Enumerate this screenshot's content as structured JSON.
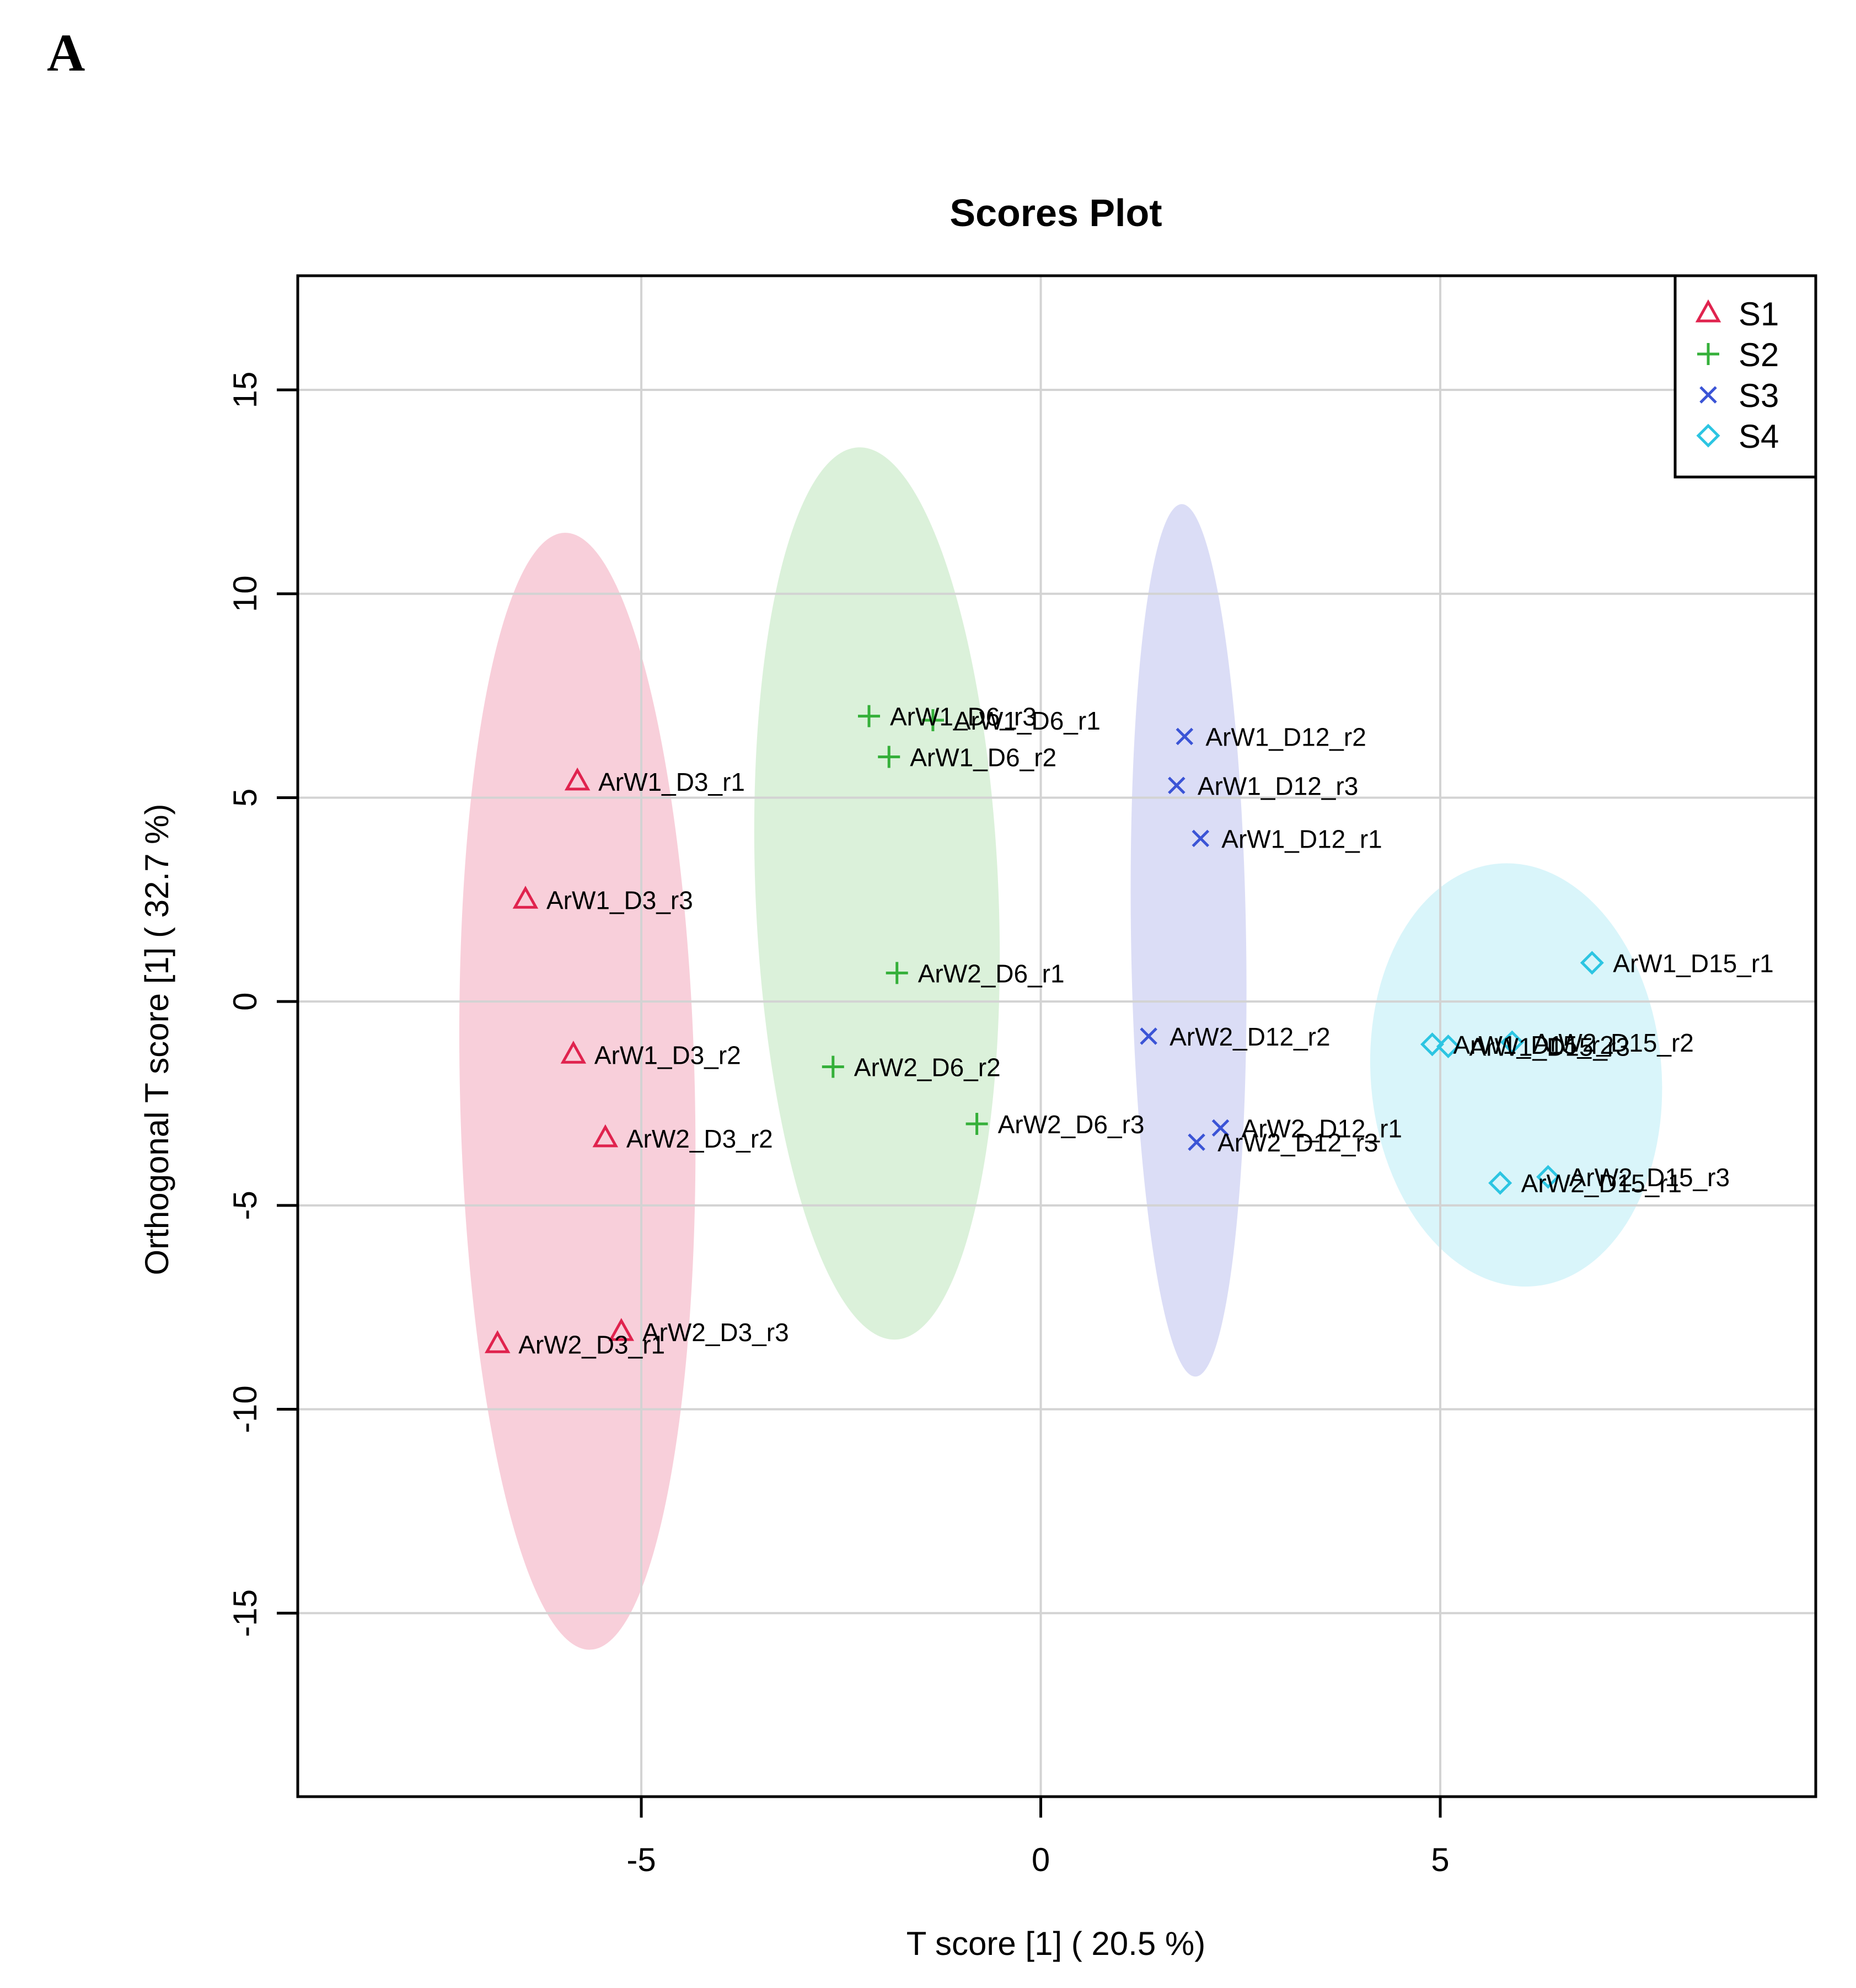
{
  "panel_label": "A",
  "chart_data": {
    "type": "scatter",
    "title": "Scores Plot",
    "xlabel": "T score [1] ( 20.5 %)",
    "ylabel": "Orthogonal T score [1] ( 32.7 %)",
    "xlim": [
      -9.3,
      9.7
    ],
    "ylim": [
      -19.5,
      17.8
    ],
    "xticks": [
      -5,
      0,
      5
    ],
    "yticks": [
      -15,
      -10,
      -5,
      0,
      5,
      10,
      15
    ],
    "grid": true,
    "legend_position": "top-right",
    "series": [
      {
        "name": "S1",
        "marker": "triangle",
        "color": "#e0234e",
        "fill": "#f5b6c6",
        "ellipse": {
          "cx": -5.8,
          "cy": -2.2,
          "rx": 1.47,
          "ry": 13.7,
          "angle_deg": -1.3
        },
        "points": [
          {
            "label": "ArW1_D3_r1",
            "x": -5.8,
            "y": 5.4
          },
          {
            "label": "ArW1_D3_r3",
            "x": -6.45,
            "y": 2.5
          },
          {
            "label": "ArW1_D3_r2",
            "x": -5.85,
            "y": -1.3
          },
          {
            "label": "ArW2_D3_r2",
            "x": -5.45,
            "y": -3.35
          },
          {
            "label": "ArW2_D3_r1",
            "x": -6.8,
            "y": -8.4
          },
          {
            "label": "ArW2_D3_r3",
            "x": -5.25,
            "y": -8.1
          }
        ]
      },
      {
        "name": "S2",
        "marker": "plus",
        "color": "#35b03a",
        "fill": "#c8e9c6",
        "ellipse": {
          "cx": -2.05,
          "cy": 2.65,
          "rx": 1.52,
          "ry": 10.95,
          "angle_deg": -2.4
        },
        "points": [
          {
            "label": "ArW1_D6_r3",
            "x": -2.15,
            "y": 7.0
          },
          {
            "label": "ArW1_D6_r1",
            "x": -1.35,
            "y": 6.9
          },
          {
            "label": "ArW1_D6_r2",
            "x": -1.9,
            "y": 6.0
          },
          {
            "label": "ArW2_D6_r1",
            "x": -1.8,
            "y": 0.7
          },
          {
            "label": "ArW2_D6_r2",
            "x": -2.6,
            "y": -1.6
          },
          {
            "label": "ArW2_D6_r3",
            "x": -0.8,
            "y": -3.0
          }
        ]
      },
      {
        "name": "S3",
        "marker": "x",
        "color": "#3b54d6",
        "fill": "#c7cbf1",
        "ellipse": {
          "cx": 1.85,
          "cy": 1.5,
          "rx": 0.72,
          "ry": 10.7,
          "angle_deg": -0.9
        },
        "points": [
          {
            "label": "ArW1_D12_r2",
            "x": 1.8,
            "y": 6.5
          },
          {
            "label": "ArW1_D12_r3",
            "x": 1.7,
            "y": 5.3
          },
          {
            "label": "ArW1_D12_r1",
            "x": 2.0,
            "y": 4.0
          },
          {
            "label": "ArW2_D12_r2",
            "x": 1.35,
            "y": -0.85
          },
          {
            "label": "ArW2_D12_r1",
            "x": 2.25,
            "y": -3.1
          },
          {
            "label": "ArW2_D12_r3",
            "x": 1.95,
            "y": -3.45
          }
        ]
      },
      {
        "name": "S4",
        "marker": "diamond",
        "color": "#2cc5e2",
        "fill": "#c5f0f7",
        "ellipse": {
          "cx": 5.95,
          "cy": -1.8,
          "rx": 1.82,
          "ry": 5.2,
          "angle_deg": -4.8
        },
        "points": [
          {
            "label": "ArW1_D15_r1",
            "x": 6.9,
            "y": 0.95
          },
          {
            "label": "ArW1_D15_r2",
            "x": 4.9,
            "y": -1.05
          },
          {
            "label": "ArW1_D15_r3",
            "x": 5.1,
            "y": -1.1
          },
          {
            "label": "ArW2_D15_r2",
            "x": 5.9,
            "y": -1.0
          },
          {
            "label": "ArW2_D15_r1",
            "x": 5.75,
            "y": -4.45
          },
          {
            "label": "ArW2_D15_r3",
            "x": 6.35,
            "y": -4.3
          }
        ]
      }
    ]
  }
}
